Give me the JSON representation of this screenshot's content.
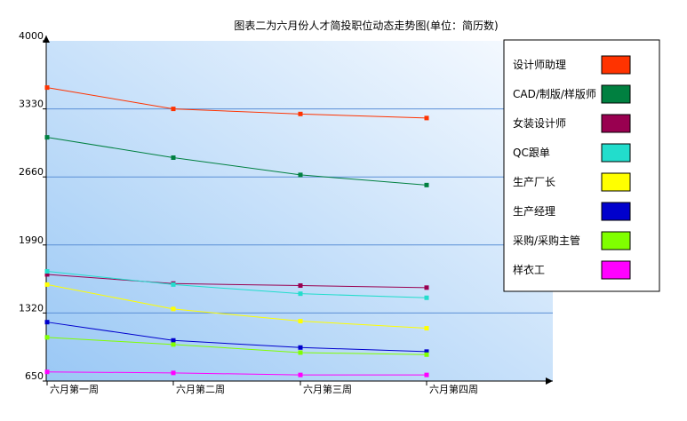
{
  "chart_data": {
    "type": "line",
    "title": "图表二为六月份人才简投职位动态走势图(单位：简历数)",
    "categories": [
      "六月第一周",
      "六月第二周",
      "六月第三周",
      "六月第四周"
    ],
    "y_ticks": [
      "4000",
      "3330",
      "2660",
      "1990",
      "1320",
      "650"
    ],
    "ylim": [
      650,
      4000
    ],
    "grid": true,
    "legend_position": "right",
    "series": [
      {
        "name": "设计师助理",
        "color": "#ff3300",
        "values": [
          3540,
          3330,
          3280,
          3240
        ]
      },
      {
        "name": "CAD/制版/样版师",
        "color": "#008040",
        "values": [
          3050,
          2850,
          2680,
          2580
        ]
      },
      {
        "name": "女装设计师",
        "color": "#990050",
        "values": [
          1700,
          1610,
          1590,
          1570
        ]
      },
      {
        "name": "QC跟单",
        "color": "#22ddcc",
        "values": [
          1730,
          1600,
          1510,
          1470
        ]
      },
      {
        "name": "生产厂长",
        "color": "#ffff00",
        "values": [
          1600,
          1360,
          1240,
          1170
        ]
      },
      {
        "name": "生产经理",
        "color": "#0000cc",
        "values": [
          1230,
          1050,
          980,
          940
        ]
      },
      {
        "name": "采购/采购主管",
        "color": "#80ff00",
        "values": [
          1080,
          1010,
          930,
          910
        ]
      },
      {
        "name": "样衣工",
        "color": "#ff00ff",
        "values": [
          740,
          730,
          710,
          710
        ]
      }
    ]
  }
}
